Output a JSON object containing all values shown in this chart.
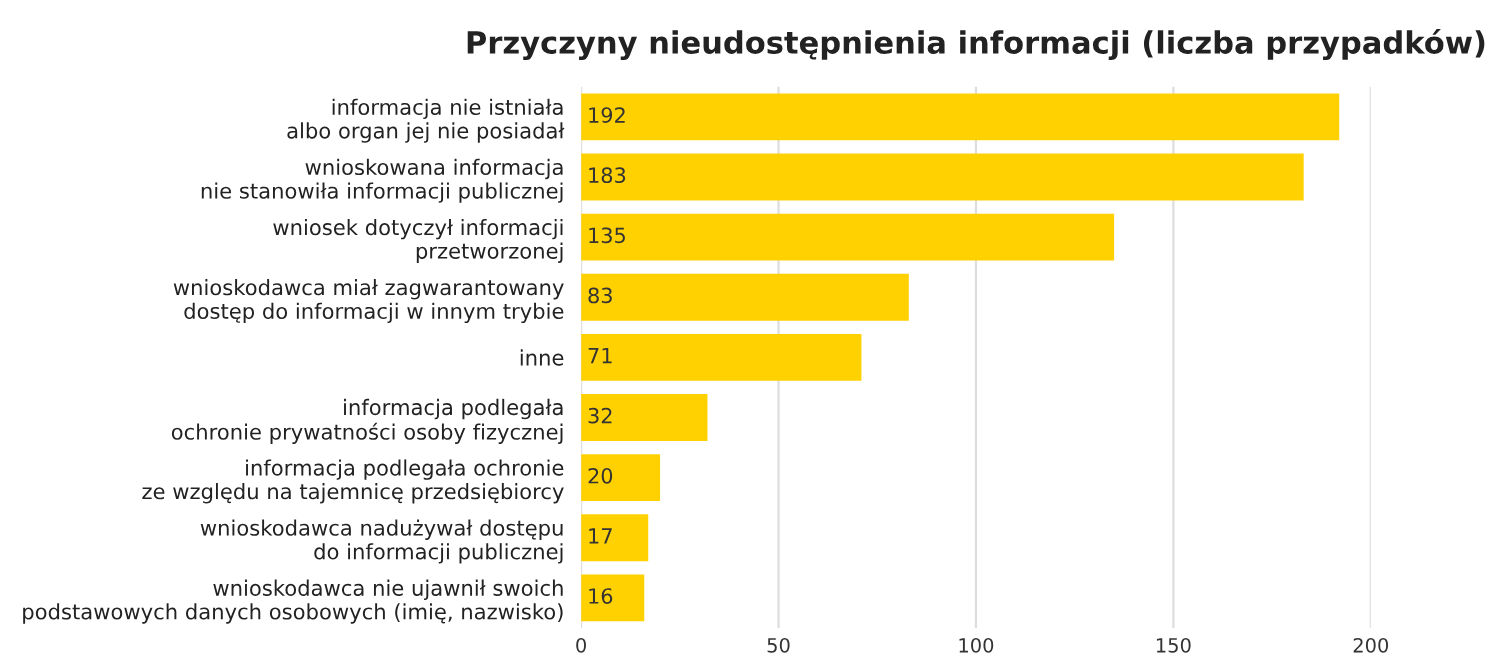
{
  "chart_data": {
    "type": "bar",
    "orientation": "horizontal",
    "title": "Przyczyny nieudostępnienia informacji (liczba przypadków)",
    "categories": [
      "informacja nie istniała\nalbo organ jej nie posiadał",
      "wnioskowana informacja\nnie stanowiła informacji publicznej",
      "wniosek dotyczył informacji\nprzetworzonej",
      "wnioskodawca miał zagwarantowany\ndostęp do informacji w innym trybie",
      "inne",
      "informacja podlegała\nochronie prywatności osoby fizycznej",
      "informacja podlegała ochronie\nze względu na tajemnicę przedsiębiorcy",
      "wnioskodawca nadużywał dostępu\ndo informacji publicznej",
      "wnioskodawca nie ujawnił swoich\npodstawowych danych osobowych (imię, nazwisko)"
    ],
    "values": [
      192,
      183,
      135,
      83,
      71,
      32,
      20,
      17,
      16
    ],
    "color": "#ffd100",
    "xlim": [
      0,
      200
    ],
    "xticks": [
      0,
      50,
      100,
      150,
      200
    ],
    "grid": "x",
    "data_labels": true,
    "legend": false
  }
}
